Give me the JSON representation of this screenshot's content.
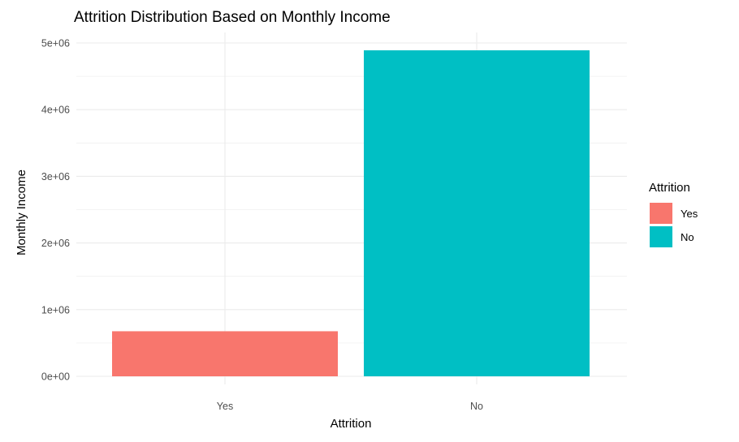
{
  "chart_data": {
    "type": "bar",
    "title": "Attrition Distribution Based on Monthly Income",
    "xlabel": "Attrition",
    "ylabel": "Monthly Income",
    "categories": [
      "Yes",
      "No"
    ],
    "values": [
      676000,
      4890000
    ],
    "colors": [
      "#F8766D",
      "#00BFC4"
    ],
    "ylim": [
      0,
      5000000
    ],
    "yticks": [
      0,
      1000000,
      2000000,
      3000000,
      4000000,
      5000000
    ],
    "ytick_labels": [
      "0e+00",
      "1e+06",
      "2e+06",
      "3e+06",
      "4e+06",
      "5e+06"
    ],
    "grid": true,
    "legend": {
      "title": "Attrition",
      "placement": "right",
      "entries": [
        "Yes",
        "No"
      ]
    }
  }
}
